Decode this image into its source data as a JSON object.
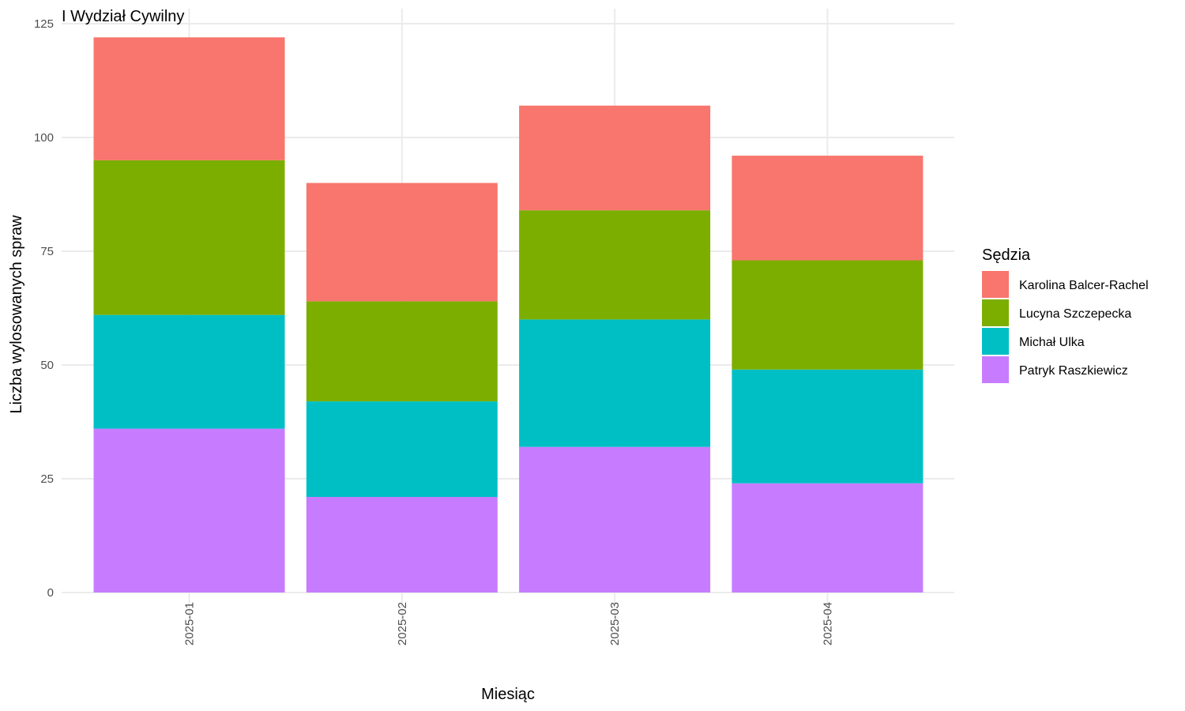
{
  "chart_data": {
    "type": "bar",
    "stacked": true,
    "title": "I Wydział Cywilny",
    "xlabel": "Miesiąc",
    "ylabel": "Liczba wylosowanych spraw",
    "ylim": [
      0,
      125
    ],
    "yticks": [
      0,
      25,
      50,
      75,
      100,
      125
    ],
    "grid": true,
    "categories": [
      "2025-01",
      "2025-02",
      "2025-03",
      "2025-04"
    ],
    "legend": {
      "title": "Sędzia",
      "position": "right"
    },
    "series": [
      {
        "name": "Karolina Balcer-Rachel",
        "color": "#F8766D",
        "values": [
          27,
          26,
          23,
          23
        ]
      },
      {
        "name": "Lucyna Szczepecka",
        "color": "#7CAE00",
        "values": [
          34,
          22,
          24,
          24
        ]
      },
      {
        "name": "Michał Ulka",
        "color": "#00BFC4",
        "values": [
          25,
          21,
          28,
          25
        ]
      },
      {
        "name": "Patryk Raszkiewicz",
        "color": "#C77CFF",
        "values": [
          36,
          21,
          32,
          24
        ]
      }
    ]
  }
}
